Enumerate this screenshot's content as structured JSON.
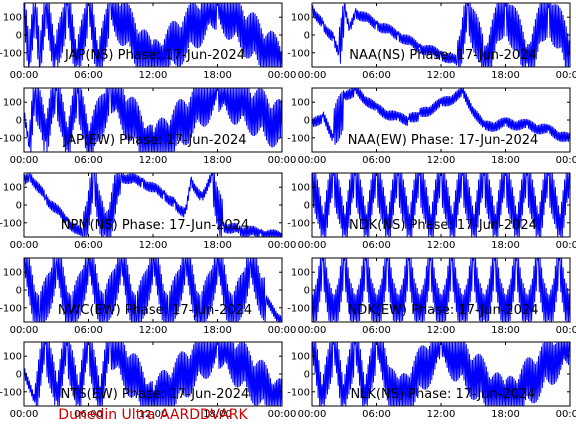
{
  "footer": {
    "text": "Dunedin Ultra AARDDVARK",
    "color": "#cc0000"
  },
  "colors": {
    "trace": "#0000ff",
    "axes": "#000000",
    "background": "#ffffff"
  },
  "chart_data": [
    {
      "type": "line",
      "title": "JAP(NS) Phase: 17-Jun-2024",
      "xlabel": "",
      "ylabel": "",
      "xlim": [
        "00:00",
        "24:00"
      ],
      "ylim": [
        -180,
        180
      ],
      "xticklabels": [
        "00:00",
        "06:00",
        "12:00",
        "18:00",
        "00:00"
      ],
      "yticklabels": [
        "100",
        "0",
        "-100"
      ],
      "series": [
        {
          "x": [
            "00:00",
            "00:30",
            "01:00",
            "01:30",
            "02:00",
            "03:00",
            "04:00",
            "05:00",
            "06:00",
            "07:00",
            "08:00",
            "12:00",
            "18:00",
            "24:00"
          ],
          "y": [
            120,
            -160,
            150,
            -170,
            160,
            -140,
            170,
            -170,
            180,
            -180,
            180,
            -180,
            180,
            -180
          ]
        }
      ]
    },
    {
      "type": "line",
      "title": "NAA(NS) Phase: 17-Jun-2024",
      "xlabel": "",
      "ylabel": "",
      "xlim": [
        "00:00",
        "24:00"
      ],
      "ylim": [
        -180,
        180
      ],
      "xticklabels": [
        "00:00",
        "06:00",
        "12:00",
        "18:00",
        "00:00"
      ],
      "yticklabels": [
        "100",
        "0",
        "-100"
      ],
      "series": [
        {
          "x": [
            "00:00",
            "01:00",
            "02:00",
            "02:30",
            "03:00",
            "03:30",
            "04:00",
            "06:00",
            "08:00",
            "10:00",
            "12:00",
            "13:30",
            "14:30",
            "16:00",
            "18:00",
            "20:00",
            "22:00",
            "24:00"
          ],
          "y": [
            150,
            60,
            -20,
            -90,
            170,
            40,
            130,
            60,
            0,
            -70,
            -110,
            -150,
            170,
            -170,
            160,
            -160,
            150,
            -120
          ]
        }
      ]
    },
    {
      "type": "line",
      "title": "JAP(EW) Phase: 17-Jun-2024",
      "xlabel": "",
      "ylabel": "",
      "xlim": [
        "00:00",
        "24:00"
      ],
      "ylim": [
        -180,
        180
      ],
      "xticklabels": [
        "00:00",
        "06:00",
        "12:00",
        "18:00",
        "00:00"
      ],
      "yticklabels": [
        "100",
        "0",
        "-100"
      ],
      "series": [
        {
          "x": [
            "00:00",
            "00:30",
            "01:00",
            "02:00",
            "03:00",
            "04:00",
            "05:00",
            "06:00",
            "08:00",
            "12:00",
            "18:00",
            "24:00"
          ],
          "y": [
            40,
            -150,
            160,
            -120,
            170,
            -170,
            150,
            -180,
            180,
            -180,
            180,
            -40
          ]
        }
      ]
    },
    {
      "type": "line",
      "title": "NAA(EW) Phase: 17-Jun-2024",
      "xlabel": "",
      "ylabel": "",
      "xlim": [
        "00:00",
        "24:00"
      ],
      "ylim": [
        -180,
        180
      ],
      "xticklabels": [
        "00:00",
        "06:00",
        "12:00",
        "18:00",
        "00:00"
      ],
      "yticklabels": [
        "100",
        "0",
        "-100"
      ],
      "series": [
        {
          "x": [
            "00:00",
            "01:00",
            "02:00",
            "03:00",
            "04:00",
            "06:00",
            "08:00",
            "09:00",
            "10:00",
            "12:00",
            "14:00",
            "16:00",
            "18:00",
            "20:00",
            "22:00",
            "24:00"
          ],
          "y": [
            -30,
            20,
            -100,
            120,
            170,
            60,
            10,
            0,
            30,
            90,
            150,
            -40,
            -20,
            -30,
            -60,
            -110
          ]
        }
      ]
    },
    {
      "type": "line",
      "title": "NPM(NS) Phase: 17-Jun-2024",
      "xlabel": "",
      "ylabel": "",
      "xlim": [
        "00:00",
        "24:00"
      ],
      "ylim": [
        -180,
        180
      ],
      "xticklabels": [
        "00:00",
        "06:00",
        "12:00",
        "18:00",
        "00:00"
      ],
      "yticklabels": [
        "100",
        "0",
        "-100"
      ],
      "series": [
        {
          "x": [
            "00:00",
            "00:30",
            "02:00",
            "04:00",
            "05:30",
            "06:30",
            "07:30",
            "09:00",
            "11:00",
            "13:00",
            "14:00",
            "15:00",
            "15:30",
            "16:30",
            "17:30",
            "18:30",
            "20:00",
            "22:00",
            "24:00"
          ],
          "y": [
            140,
            170,
            40,
            -90,
            -170,
            180,
            -170,
            160,
            130,
            60,
            10,
            -50,
            140,
            40,
            170,
            -120,
            -140,
            -160,
            -180
          ]
        }
      ]
    },
    {
      "type": "line",
      "title": "NDK(NS) Phase: 17-Jun-2024",
      "xlabel": "",
      "ylabel": "",
      "xlim": [
        "00:00",
        "24:00"
      ],
      "ylim": [
        -180,
        180
      ],
      "xticklabels": [
        "00:00",
        "06:00",
        "12:00",
        "18:00",
        "00:00"
      ],
      "yticklabels": [
        "100",
        "0",
        "-100"
      ],
      "series": [
        {
          "x": [
            "00:00",
            "01:00",
            "02:00",
            "03:00",
            "04:00",
            "05:00",
            "06:00",
            "07:00",
            "08:00",
            "09:00",
            "10:00",
            "11:00",
            "12:00",
            "13:00",
            "14:00",
            "15:00",
            "16:00",
            "17:00",
            "18:00",
            "19:00",
            "20:00",
            "21:00",
            "22:00",
            "23:00",
            "24:00"
          ],
          "y": [
            170,
            -170,
            170,
            -170,
            170,
            -170,
            170,
            -170,
            170,
            -170,
            170,
            -170,
            170,
            -170,
            170,
            -170,
            170,
            -170,
            170,
            -170,
            170,
            -170,
            170,
            -170,
            170
          ]
        }
      ]
    },
    {
      "type": "line",
      "title": "NWC(EW) Phase: 17-Jun-2024",
      "xlabel": "",
      "ylabel": "",
      "xlim": [
        "00:00",
        "24:00"
      ],
      "ylim": [
        -180,
        180
      ],
      "xticklabels": [
        "00:00",
        "06:00",
        "12:00",
        "18:00",
        "00:00"
      ],
      "yticklabels": [
        "100",
        "0",
        "-100"
      ],
      "series": [
        {
          "x": [
            "00:00",
            "01:30",
            "03:00",
            "04:30",
            "06:00",
            "07:30",
            "09:00",
            "10:30",
            "12:00",
            "13:30",
            "15:00",
            "16:30",
            "18:00",
            "19:30",
            "21:00",
            "22:30",
            "24:00"
          ],
          "y": [
            160,
            -170,
            150,
            -170,
            170,
            -160,
            170,
            -170,
            170,
            -170,
            170,
            -170,
            170,
            -170,
            150,
            -60,
            -180
          ]
        }
      ]
    },
    {
      "type": "line",
      "title": "NDK(EW) Phase: 17-Jun-2024",
      "xlabel": "",
      "ylabel": "",
      "xlim": [
        "00:00",
        "24:00"
      ],
      "ylim": [
        -180,
        180
      ],
      "xticklabels": [
        "00:00",
        "06:00",
        "12:00",
        "18:00",
        "00:00"
      ],
      "yticklabels": [
        "100",
        "0",
        "-100"
      ],
      "series": [
        {
          "x": [
            "00:00",
            "01:00",
            "02:00",
            "03:00",
            "04:00",
            "05:00",
            "06:00",
            "07:00",
            "08:00",
            "09:00",
            "10:00",
            "11:00",
            "12:00",
            "13:00",
            "14:00",
            "15:00",
            "16:00",
            "17:00",
            "18:00",
            "19:00",
            "20:00",
            "21:00",
            "22:00",
            "23:00",
            "24:00"
          ],
          "y": [
            -170,
            170,
            -170,
            170,
            -170,
            170,
            -170,
            170,
            -170,
            170,
            -170,
            170,
            -170,
            170,
            -170,
            170,
            -170,
            170,
            -170,
            170,
            -170,
            170,
            -170,
            170,
            -170
          ]
        }
      ]
    },
    {
      "type": "line",
      "title": "NTS(EW) Phase: 17-Jun-2024",
      "xlabel": "",
      "ylabel": "",
      "xlim": [
        "00:00",
        "24:00"
      ],
      "ylim": [
        -180,
        180
      ],
      "xticklabels": [
        "00:00",
        "06:00",
        "12:00",
        "18:00",
        "00:00"
      ],
      "yticklabels": [
        "100",
        "0",
        "-100"
      ],
      "series": [
        {
          "x": [
            "00:00",
            "01:00",
            "02:00",
            "03:00",
            "04:00",
            "05:00",
            "06:00",
            "07:00",
            "08:00",
            "12:00",
            "18:00",
            "24:00"
          ],
          "y": [
            20,
            -160,
            170,
            -150,
            160,
            -170,
            180,
            -180,
            180,
            -180,
            180,
            -180
          ]
        }
      ]
    },
    {
      "type": "line",
      "title": "NLK(NS) Phase: 17-Jun-2024",
      "xlabel": "",
      "ylabel": "",
      "xlim": [
        "00:00",
        "24:00"
      ],
      "ylim": [
        -180,
        180
      ],
      "xticklabels": [
        "00:00",
        "06:00",
        "12:00",
        "18:00",
        "00:00"
      ],
      "yticklabels": [
        "100",
        "0",
        "-100"
      ],
      "series": [
        {
          "x": [
            "00:00",
            "01:00",
            "02:00",
            "03:00",
            "04:00",
            "05:00",
            "06:00",
            "08:00",
            "12:00",
            "18:00",
            "24:00"
          ],
          "y": [
            170,
            -170,
            170,
            -170,
            170,
            -170,
            180,
            -180,
            180,
            -180,
            180
          ]
        }
      ]
    }
  ]
}
